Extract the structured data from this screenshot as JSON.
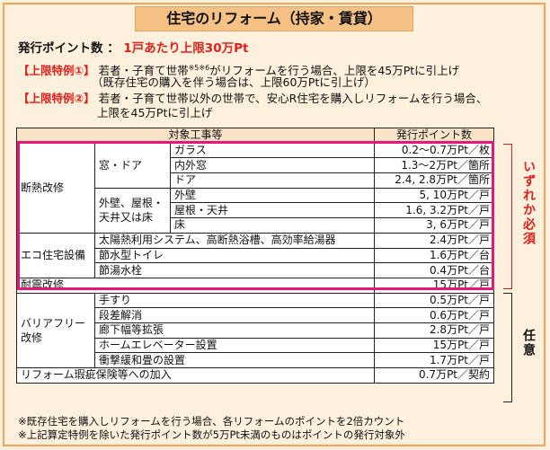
{
  "title": "住宅のリフォーム（持家・賃貸）",
  "points_label": "発行ポイント数",
  "points_sep": "：",
  "points_value": "1戸あたり上限30万Pt",
  "special1": {
    "tag": "【上限特例①】",
    "text": "若者・子育て世帯",
    "sup": "※5※6",
    "text2": "がリフォームを行う場合、上限を45万Ptに引上げ",
    "sub": "（既存住宅の購入を伴う場合は、上限60万Ptに引上げ）"
  },
  "special2": {
    "tag": "【上限特例②】",
    "text": "若者・子育て世帯以外の世帯で、安心R住宅を購入しリフォームを行う場合、",
    "text2": "上限を45万Ptに引上げ"
  },
  "table": {
    "headers": [
      "対象工事等",
      "発行ポイント数"
    ],
    "insulation": "断熱改修",
    "window_door": "窓・ドア",
    "glass": "ガラス",
    "glass_pts": "0.2～0.7万Pt／枚",
    "inner_window": "内外窓",
    "inner_window_pts": "1.3～2万Pt／箇所",
    "door": "ドア",
    "door_pts": "2.4, 2.8万Pt／箇所",
    "walls_group": "外壁、屋根・天井又は床",
    "outer_wall": "外壁",
    "outer_wall_pts": "5, 10万Pt／戸",
    "roof": "屋根・天井",
    "roof_pts": "1.6, 3.2万Pt／戸",
    "floor": "床",
    "floor_pts": "3, 6万Pt／戸",
    "eco": "エコ住宅設備",
    "solar": "太陽熱利用システム、高断熱浴槽、高効率給湯器",
    "solar_pts": "2.4万Pt／戸",
    "toilet": "節水型トイレ",
    "toilet_pts": "1.6万Pt／台",
    "faucet": "節湯水栓",
    "faucet_pts": "0.4万Pt／台",
    "seismic": "耐震改修",
    "seismic_pts": "15万Pt／戸",
    "barrier": "バリアフリー改修",
    "handrail": "手すり",
    "handrail_pts": "0.5万Pt／戸",
    "step": "段差解消",
    "step_pts": "0.6万Pt／戸",
    "hallway": "廊下幅等拡張",
    "hallway_pts": "2.8万Pt／戸",
    "elevator": "ホームエレベーター設置",
    "elevator_pts": "15万Pt／戸",
    "floor_mat": "衝撃緩和畳の設置",
    "floor_mat_pts": "1.7万Pt／戸",
    "insurance": "リフォーム瑕疵保険等への加入",
    "insurance_pts": "0.7万Pt／契約"
  },
  "label_required": "いずれか必須",
  "label_optional": "任意",
  "notes": [
    "※既存住宅を購入しリフォームを行う場合、各リフォームのポイントを2倍カウント",
    "※上記算定特例を除いた発行ポイント数が5万Pt未満のものはポイントの発行対象外"
  ],
  "colors": {
    "title_bg": "#f6c185",
    "page_bg": "#fdf0dc",
    "highlight": "#e6167a",
    "red": "#e0201c"
  }
}
